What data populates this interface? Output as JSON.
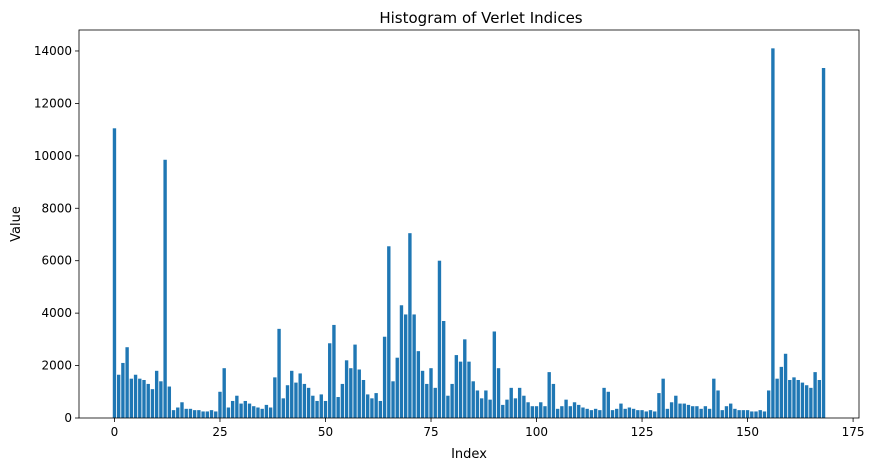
{
  "chart_data": {
    "type": "bar",
    "title": "Histogram of Verlet Indices",
    "xlabel": "Index",
    "ylabel": "Value",
    "xlim": [
      -8.4,
      176.4
    ],
    "ylim": [
      0,
      14800
    ],
    "xticks": [
      0,
      25,
      50,
      75,
      100,
      125,
      150,
      175
    ],
    "yticks": [
      0,
      2000,
      4000,
      6000,
      8000,
      10000,
      12000,
      14000
    ],
    "grid": false,
    "legend": "none",
    "bar_color": "#1f77b4",
    "x": [
      0,
      1,
      2,
      3,
      4,
      5,
      6,
      7,
      8,
      9,
      10,
      11,
      12,
      13,
      14,
      15,
      16,
      17,
      18,
      19,
      20,
      21,
      22,
      23,
      24,
      25,
      26,
      27,
      28,
      29,
      30,
      31,
      32,
      33,
      34,
      35,
      36,
      37,
      38,
      39,
      40,
      41,
      42,
      43,
      44,
      45,
      46,
      47,
      48,
      49,
      50,
      51,
      52,
      53,
      54,
      55,
      56,
      57,
      58,
      59,
      60,
      61,
      62,
      63,
      64,
      65,
      66,
      67,
      68,
      69,
      70,
      71,
      72,
      73,
      74,
      75,
      76,
      77,
      78,
      79,
      80,
      81,
      82,
      83,
      84,
      85,
      86,
      87,
      88,
      89,
      90,
      91,
      92,
      93,
      94,
      95,
      96,
      97,
      98,
      99,
      100,
      101,
      102,
      103,
      104,
      105,
      106,
      107,
      108,
      109,
      110,
      111,
      112,
      113,
      114,
      115,
      116,
      117,
      118,
      119,
      120,
      121,
      122,
      123,
      124,
      125,
      126,
      127,
      128,
      129,
      130,
      131,
      132,
      133,
      134,
      135,
      136,
      137,
      138,
      139,
      140,
      141,
      142,
      143,
      144,
      145,
      146,
      147,
      148,
      149,
      150,
      151,
      152,
      153,
      154,
      155,
      156,
      157,
      158,
      159,
      160,
      161,
      162,
      163,
      164,
      165,
      166,
      167,
      168
    ],
    "values": [
      11050,
      1650,
      2100,
      2700,
      1500,
      1650,
      1500,
      1450,
      1300,
      1100,
      1800,
      1400,
      9850,
      1200,
      300,
      400,
      600,
      350,
      350,
      300,
      300,
      250,
      250,
      300,
      250,
      1000,
      1900,
      400,
      650,
      850,
      550,
      650,
      550,
      450,
      400,
      350,
      500,
      400,
      1550,
      3400,
      750,
      1250,
      1800,
      1350,
      1700,
      1300,
      1150,
      850,
      650,
      900,
      650,
      2850,
      3550,
      800,
      1300,
      2200,
      1900,
      2800,
      1850,
      1450,
      900,
      750,
      950,
      650,
      3100,
      6550,
      1400,
      2300,
      4300,
      3950,
      7050,
      3950,
      2550,
      1800,
      1300,
      1900,
      1150,
      6000,
      3700,
      850,
      1300,
      2400,
      2150,
      3000,
      2150,
      1400,
      1050,
      750,
      1050,
      700,
      3300,
      1900,
      500,
      700,
      1150,
      750,
      1150,
      850,
      600,
      450,
      450,
      600,
      450,
      1750,
      1300,
      350,
      450,
      700,
      450,
      600,
      500,
      400,
      350,
      300,
      350,
      300,
      1150,
      1000,
      300,
      350,
      550,
      350,
      400,
      350,
      300,
      300,
      250,
      300,
      250,
      950,
      1500,
      350,
      600,
      850,
      550,
      550,
      500,
      450,
      450,
      350,
      450,
      350,
      1500,
      1050,
      300,
      450,
      550,
      350,
      300,
      300,
      300,
      250,
      250,
      300,
      250,
      1050,
      14100,
      1500,
      1950,
      2450,
      1450,
      1550,
      1450,
      1350,
      1250,
      1150,
      1750,
      1450,
      13350
    ]
  }
}
